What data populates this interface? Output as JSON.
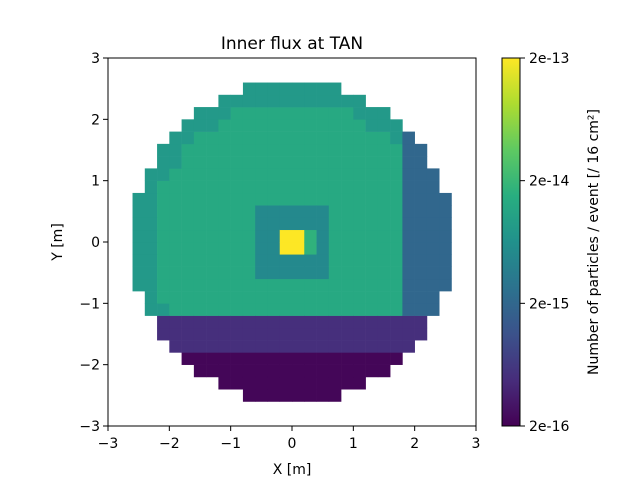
{
  "chart_data": {
    "type": "heatmap",
    "title": "Inner flux at TAN",
    "xlabel": "X [m]",
    "ylabel": "Y [m]",
    "xlim": [
      -3,
      3
    ],
    "ylim": [
      -3,
      3
    ],
    "x_ticks": [
      "−3",
      "−2",
      "−1",
      "0",
      "1",
      "2",
      "3"
    ],
    "y_ticks": [
      "−3",
      "−2",
      "−1",
      "0",
      "1",
      "2",
      "3"
    ],
    "grid": false,
    "bin_size_m": 0.2,
    "circle_radius_m": 2.6,
    "colorbar": {
      "label": "Number of particles / event [/ 16 cm²]",
      "scale": "log",
      "range": [
        2e-16,
        2e-13
      ],
      "ticks": [
        "2e-13",
        "2e-14",
        "2e-15",
        "2e-16"
      ],
      "colormap": "viridis"
    },
    "regions": {
      "bulk_value": 1.3e-14,
      "upper_edge_value": 8e-15,
      "right_edge_value": 2e-15,
      "lower_band_value": 5e-16,
      "lower_band_y_max": -1.2,
      "bottom_value": 2.2e-16,
      "bottom_y_max": -1.8,
      "ring_value": 5e-15,
      "ring_half_width_m": 0.6,
      "center_value": 2e-13,
      "center_x": [
        -0.2,
        0.2
      ],
      "center_y": [
        -0.2,
        0.2
      ],
      "center_neighbor_value": 1.7e-14
    }
  }
}
